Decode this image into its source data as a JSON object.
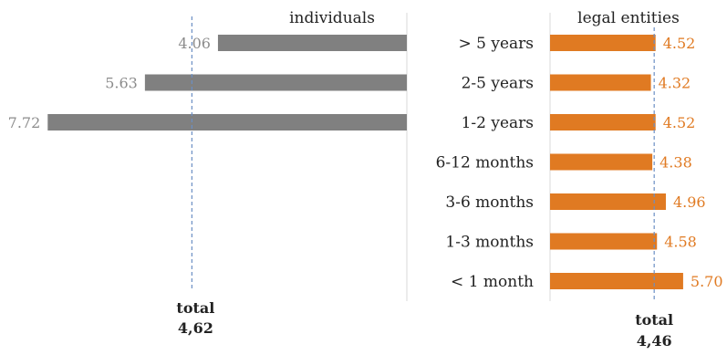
{
  "chart_data": [
    {
      "type": "bar",
      "title": "individuals",
      "categories": [
        "> 5 years",
        "2-5 years",
        "1-2 years",
        "6-12 months",
        "3-6 months",
        "1-3 months",
        "< 1 month"
      ],
      "values": [
        4.06,
        5.63,
        7.72,
        null,
        null,
        null,
        null
      ],
      "value_labels": [
        "4.06",
        "5.63",
        "7.72",
        "",
        "",
        "",
        ""
      ],
      "reference_line": {
        "label": "total",
        "value_text": "4,62",
        "value": 4.62
      },
      "orientation": "horizontal-reversed",
      "color": "#808080",
      "xlim": [
        0,
        8
      ]
    },
    {
      "type": "bar",
      "title": "legal entities",
      "categories": [
        "> 5 years",
        "2-5 years",
        "1-2 years",
        "6-12 months",
        "3-6 months",
        "1-3 months",
        "< 1 month"
      ],
      "values": [
        4.52,
        4.32,
        4.52,
        4.38,
        4.96,
        4.58,
        5.7
      ],
      "value_labels": [
        "4.52",
        "4.32",
        "4.52",
        "4.38",
        "4.96",
        "4.58",
        "5.70"
      ],
      "reference_line": {
        "label": "total",
        "value_text": "4,46",
        "value": 4.46
      },
      "orientation": "horizontal",
      "color": "#e07a22",
      "xlim": [
        0,
        6
      ]
    }
  ]
}
